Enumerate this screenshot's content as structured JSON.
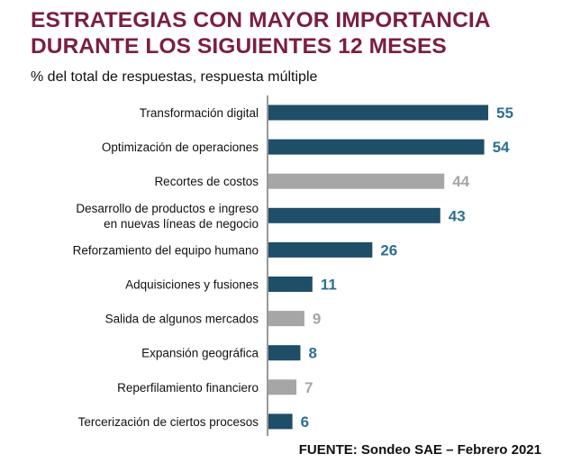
{
  "title_line1": "ESTRATEGIAS CON MAYOR IMPORTANCIA",
  "title_line2": "DURANTE LOS SIGUIENTES 12 MESES",
  "subtitle": "% del total de respuestas, respuesta múltiple",
  "source": "FUENTE: Sondeo SAE – Febrero 2021",
  "colors": {
    "title": "#7b1e42",
    "highlight": "#1f4e68",
    "muted": "#a6a6a6",
    "highlight_label": "#2f6f92",
    "muted_label": "#a6a6a6",
    "axis": "#555555"
  },
  "chart_data": {
    "type": "bar",
    "orientation": "horizontal",
    "categories": [
      [
        "Transformación digital"
      ],
      [
        "Optimización de operaciones"
      ],
      [
        "Recortes de costos"
      ],
      [
        "Desarrollo de productos e ingreso",
        "en nuevas líneas de negocio"
      ],
      [
        "Reforzamiento del equipo humano"
      ],
      [
        "Adquisiciones y fusiones"
      ],
      [
        "Salida de algunos mercados"
      ],
      [
        "Expansión geográfica"
      ],
      [
        "Reperfilamiento financiero"
      ],
      [
        "Tercerización de ciertos procesos"
      ]
    ],
    "values": [
      55,
      54,
      44,
      43,
      26,
      11,
      9,
      8,
      7,
      6
    ],
    "highlighted": [
      true,
      true,
      false,
      true,
      true,
      true,
      false,
      true,
      false,
      true
    ],
    "xlim": [
      0,
      55
    ],
    "grid": false,
    "data_labels": true
  }
}
